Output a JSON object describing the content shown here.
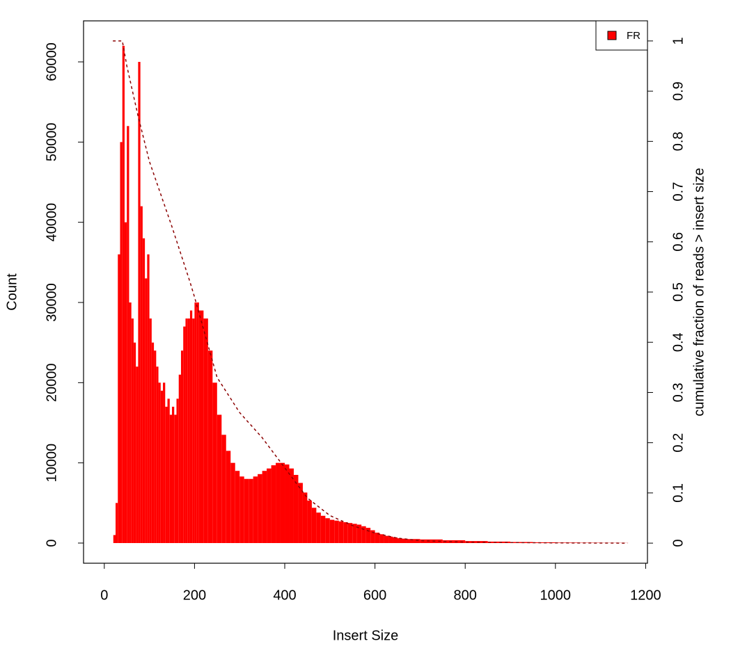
{
  "chart_data": {
    "type": "histogram",
    "x_label": "Insert Size",
    "y_label": "Count",
    "y2_label": "cumulative fraction of reads > insert size",
    "x": [
      20,
      25,
      30,
      35,
      40,
      45,
      50,
      55,
      60,
      65,
      70,
      75,
      80,
      85,
      90,
      95,
      100,
      105,
      110,
      115,
      120,
      125,
      130,
      135,
      140,
      145,
      150,
      155,
      160,
      165,
      170,
      175,
      180,
      185,
      190,
      195,
      200,
      205,
      210,
      220,
      230,
      240,
      250,
      260,
      270,
      280,
      290,
      300,
      310,
      320,
      330,
      340,
      350,
      360,
      370,
      380,
      390,
      400,
      410,
      420,
      430,
      440,
      450,
      460,
      470,
      480,
      490,
      500,
      510,
      520,
      530,
      540,
      550,
      560,
      570,
      580,
      590,
      600,
      610,
      620,
      630,
      640,
      650,
      660,
      670,
      700,
      750,
      800,
      850,
      900,
      950,
      1000,
      1050,
      1100,
      1150,
      1160
    ],
    "series": [
      {
        "name": "FR",
        "color": "#ff0000",
        "values": [
          1000,
          5000,
          36000,
          50000,
          62000,
          40000,
          52000,
          30000,
          28000,
          25000,
          22000,
          60000,
          42000,
          38000,
          33000,
          36000,
          28000,
          25000,
          24000,
          22000,
          20000,
          19000,
          20000,
          17000,
          18000,
          16000,
          17000,
          16000,
          18000,
          21000,
          24000,
          27000,
          28000,
          28000,
          29000,
          28000,
          30000,
          30000,
          29000,
          28000,
          24000,
          20000,
          16000,
          13500,
          11500,
          10000,
          9000,
          8300,
          8000,
          8000,
          8300,
          8600,
          9000,
          9300,
          9700,
          10000,
          10000,
          9800,
          9300,
          8500,
          7500,
          6300,
          5300,
          4400,
          3800,
          3400,
          3100,
          2900,
          2800,
          2700,
          2600,
          2500,
          2400,
          2300,
          2100,
          1900,
          1600,
          1300,
          1100,
          900,
          800,
          700,
          600,
          550,
          500,
          450,
          350,
          250,
          180,
          130,
          90,
          60,
          40,
          25,
          15,
          10
        ]
      }
    ],
    "cumulative": {
      "color": "#8b0000",
      "axis": "y2",
      "x": [
        19,
        40,
        50,
        75,
        100,
        150,
        190,
        200,
        250,
        300,
        350,
        400,
        450,
        500,
        550,
        600,
        650,
        700,
        800,
        1000,
        1160
      ],
      "values": [
        1.0,
        1.0,
        0.95,
        0.85,
        0.76,
        0.63,
        0.52,
        0.49,
        0.33,
        0.26,
        0.21,
        0.15,
        0.09,
        0.055,
        0.035,
        0.02,
        0.01,
        0.005,
        0.002,
        0.0005,
        0
      ]
    },
    "xlim": [
      -46,
      1204
    ],
    "ylim": [
      -2514,
      65115
    ],
    "y2lim": [
      -0.04,
      1.04
    ],
    "xticks": [
      0,
      200,
      400,
      600,
      800,
      1000,
      1200
    ],
    "yticks": [
      0,
      10000,
      20000,
      30000,
      40000,
      50000,
      60000
    ],
    "y2ticks": [
      0,
      0.1,
      0.2,
      0.3,
      0.4,
      0.5,
      0.6,
      0.7,
      0.8,
      0.9,
      1
    ],
    "legend": "top-right"
  }
}
